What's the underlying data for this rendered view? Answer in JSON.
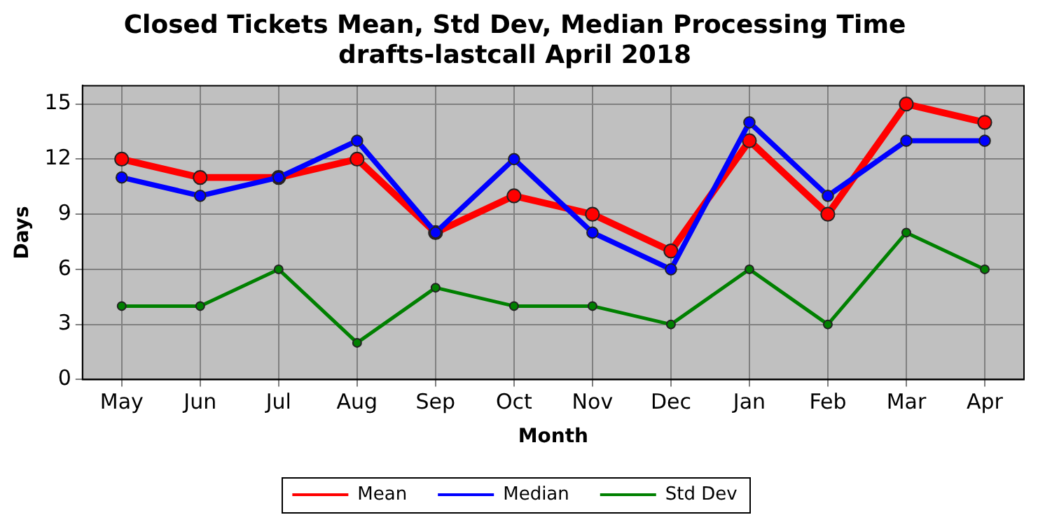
{
  "chart_data": {
    "type": "line",
    "title": "Closed Tickets Mean, Std Dev, Median Processing Time\ndrafts-lastcall April 2018",
    "xlabel": "Month",
    "ylabel": "Days",
    "categories": [
      "May",
      "Jun",
      "Jul",
      "Aug",
      "Sep",
      "Oct",
      "Nov",
      "Dec",
      "Jan",
      "Feb",
      "Mar",
      "Apr"
    ],
    "series": [
      {
        "name": "Mean",
        "color": "#ff0000",
        "values": [
          12,
          11,
          11,
          12,
          8,
          10,
          9,
          7,
          13,
          9,
          15,
          14
        ]
      },
      {
        "name": "Median",
        "color": "#0000ff",
        "values": [
          11,
          10,
          11,
          13,
          8,
          12,
          8,
          6,
          14,
          10,
          13,
          13
        ]
      },
      {
        "name": "Std Dev",
        "color": "#008000",
        "values": [
          4,
          4,
          6,
          2,
          5,
          4,
          4,
          3,
          6,
          3,
          8,
          6
        ]
      }
    ],
    "ylim": [
      0,
      16
    ],
    "yticks": [
      0,
      3,
      6,
      9,
      12,
      15
    ],
    "grid": true,
    "legend": "bottom",
    "marker": "circle",
    "line_style": "solid"
  }
}
